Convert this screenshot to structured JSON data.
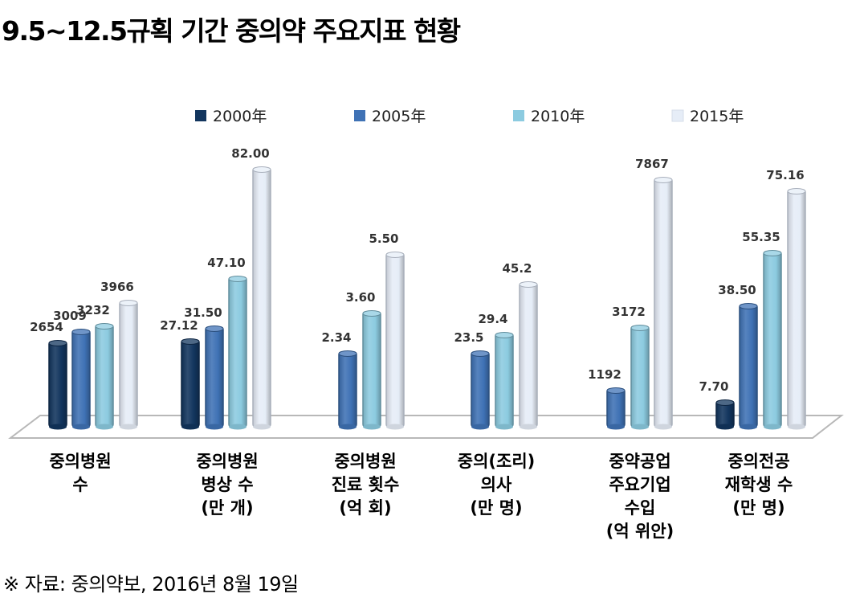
{
  "title": "9.5~12.5규획 기간 중의약 주요지표 현황",
  "source": "※ 자료: 중의약보, 2016년 8월 19일",
  "chart_data": {
    "type": "bar",
    "style": "3d-cylinder",
    "title": "9.5~12.5규획 기간 중의약 주요지표 현황",
    "xlabel": "",
    "ylabel": "",
    "grid": false,
    "axis_scale": "independent per category (no shared y-axis shown)",
    "legend_position": "top",
    "categories": [
      "중의병원\n수",
      "중의병원\n병상 수\n(만 개)",
      "중의병원\n진료 횟수\n(억 회)",
      "중의(조리)\n의사\n(만 명)",
      "중약공업\n주요기업\n수입\n(억 위안)",
      "중의전공\n재학생 수\n(만 명)"
    ],
    "series": [
      {
        "name": "2000年",
        "color": "#12355e",
        "values": [
          2654,
          27.12,
          null,
          null,
          null,
          7.7
        ],
        "labels": [
          "2654",
          "27.12",
          "",
          "",
          "",
          "7.70"
        ]
      },
      {
        "name": "2005年",
        "color": "#3f72b5",
        "values": [
          3009,
          31.5,
          2.34,
          23.5,
          1192,
          38.5
        ],
        "labels": [
          "3009",
          "31.50",
          "2.34",
          "23.5",
          "1192",
          "38.50"
        ]
      },
      {
        "name": "2010年",
        "color": "#8ccbe0",
        "values": [
          3232,
          47.1,
          3.6,
          29.4,
          3172,
          55.35
        ],
        "labels": [
          "3232",
          "47.10",
          "3.60",
          "29.4",
          "3172",
          "55.35"
        ]
      },
      {
        "name": "2015年",
        "color": "#e6edf7",
        "values": [
          3966,
          82.0,
          5.5,
          45.2,
          7867,
          75.16
        ],
        "labels": [
          "3966",
          "82.00",
          "5.50",
          "45.2",
          "7867",
          "75.16"
        ]
      }
    ]
  }
}
